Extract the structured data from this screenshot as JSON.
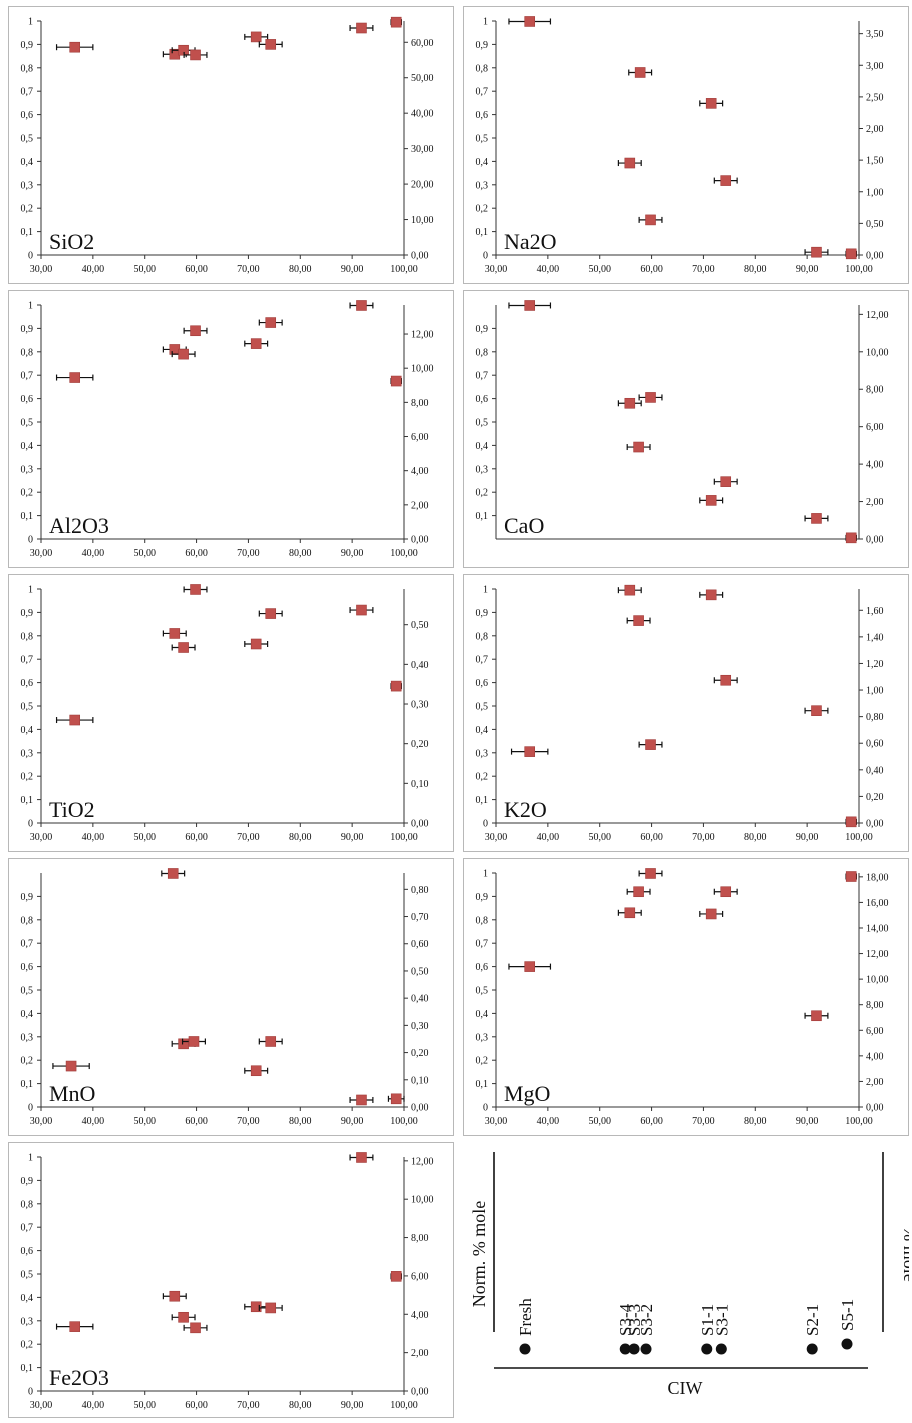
{
  "legend": {
    "left_axis_label": "Norm. % mole",
    "right_axis_label": "% mole",
    "x_axis_label": "CIW",
    "samples": [
      {
        "name": "Fresh",
        "ciw": 36.5
      },
      {
        "name": "S3-4",
        "ciw": 55.8
      },
      {
        "name": "S3-3",
        "ciw": 57.5
      },
      {
        "name": "S3-2",
        "ciw": 59.8
      },
      {
        "name": "S1-1",
        "ciw": 71.5
      },
      {
        "name": "S3-1",
        "ciw": 74.3
      },
      {
        "name": "S2-1",
        "ciw": 91.8
      },
      {
        "name": "S5-1",
        "ciw": 98.5
      }
    ]
  },
  "chart_data": [
    {
      "type": "scatter",
      "label": "SiO2",
      "xlim": [
        30,
        100
      ],
      "x_ticks": [
        "30,00",
        "40,00",
        "50,00",
        "60,00",
        "70,00",
        "80,00",
        "90,00",
        "100,00"
      ],
      "ylim_left": [
        0,
        1
      ],
      "y_ticks_left": [
        "0",
        "0,1",
        "0,2",
        "0,3",
        "0,4",
        "0,5",
        "0,6",
        "0,7",
        "0,8",
        "0,9",
        "1"
      ],
      "ylim_right": [
        0,
        66
      ],
      "y_ticks_right": [
        "0,00",
        "10,00",
        "20,00",
        "30,00",
        "40,00",
        "50,00",
        "60,00"
      ],
      "points": [
        {
          "x": 36.5,
          "y": 0.888,
          "xerr": 3.5
        },
        {
          "x": 55.8,
          "y": 0.858,
          "xerr": 2.2
        },
        {
          "x": 57.5,
          "y": 0.875,
          "xerr": 2.2
        },
        {
          "x": 59.8,
          "y": 0.855,
          "xerr": 2.2
        },
        {
          "x": 71.5,
          "y": 0.932,
          "xerr": 2.2
        },
        {
          "x": 74.3,
          "y": 0.9,
          "xerr": 2.2
        },
        {
          "x": 91.8,
          "y": 0.97,
          "xerr": 2.2
        },
        {
          "x": 98.5,
          "y": 0.995,
          "xerr": 1.0
        }
      ]
    },
    {
      "type": "scatter",
      "label": "Na2O",
      "xlim": [
        30,
        100
      ],
      "x_ticks": [
        "30,00",
        "40,00",
        "50,00",
        "60,00",
        "70,00",
        "80,00",
        "90,00",
        "100,00"
      ],
      "ylim_left": [
        0,
        1
      ],
      "y_ticks_left": [
        "0",
        "0,1",
        "0,2",
        "0,3",
        "0,4",
        "0,5",
        "0,6",
        "0,7",
        "0,8",
        "0,9",
        "1"
      ],
      "ylim_right": [
        0,
        3.7
      ],
      "y_ticks_right": [
        "0,00",
        "0,50",
        "1,00",
        "1,50",
        "2,00",
        "2,50",
        "3,00",
        "3,50"
      ],
      "points": [
        {
          "x": 36.5,
          "y": 0.998,
          "xerr": 4.0
        },
        {
          "x": 57.8,
          "y": 0.78,
          "xerr": 2.2
        },
        {
          "x": 71.5,
          "y": 0.648,
          "xerr": 2.2
        },
        {
          "x": 55.8,
          "y": 0.393,
          "xerr": 2.2
        },
        {
          "x": 74.3,
          "y": 0.318,
          "xerr": 2.2
        },
        {
          "x": 59.8,
          "y": 0.15,
          "xerr": 2.2
        },
        {
          "x": 91.8,
          "y": 0.012,
          "xerr": 2.2
        },
        {
          "x": 98.5,
          "y": 0.005,
          "xerr": 1.0
        }
      ]
    },
    {
      "type": "scatter",
      "label": "Al2O3",
      "xlim": [
        30,
        100
      ],
      "x_ticks": [
        "30,00",
        "40,00",
        "50,00",
        "60,00",
        "70,00",
        "80,00",
        "90,00",
        "100,00"
      ],
      "ylim_left": [
        0,
        1
      ],
      "y_ticks_left": [
        "0",
        "0,1",
        "0,2",
        "0,3",
        "0,4",
        "0,5",
        "0,6",
        "0,7",
        "0,8",
        "0,9",
        "1"
      ],
      "ylim_right": [
        0,
        13.7
      ],
      "y_ticks_right": [
        "0,00",
        "2,00",
        "4,00",
        "6,00",
        "8,00",
        "10,00",
        "12,00"
      ],
      "points": [
        {
          "x": 36.5,
          "y": 0.69,
          "xerr": 3.5
        },
        {
          "x": 55.8,
          "y": 0.81,
          "xerr": 2.2
        },
        {
          "x": 57.5,
          "y": 0.79,
          "xerr": 2.2
        },
        {
          "x": 59.8,
          "y": 0.89,
          "xerr": 2.2
        },
        {
          "x": 71.5,
          "y": 0.835,
          "xerr": 2.2
        },
        {
          "x": 74.3,
          "y": 0.925,
          "xerr": 2.2
        },
        {
          "x": 91.8,
          "y": 0.998,
          "xerr": 2.2
        },
        {
          "x": 98.5,
          "y": 0.675,
          "xerr": 1.0
        }
      ]
    },
    {
      "type": "scatter",
      "label": "CaO",
      "xlim": [
        30,
        100
      ],
      "x_ticks": [],
      "ylim_left": [
        0,
        1
      ],
      "y_ticks_left": [
        "0,1",
        "0,2",
        "0,3",
        "0,4",
        "0,5",
        "0,6",
        "0,7",
        "0,8",
        "0,9"
      ],
      "ylim_right": [
        0,
        12.5
      ],
      "y_ticks_right": [
        "0,00",
        "2,00",
        "4,00",
        "6,00",
        "8,00",
        "10,00",
        "12,00"
      ],
      "points": [
        {
          "x": 36.5,
          "y": 0.998,
          "xerr": 4.0
        },
        {
          "x": 55.8,
          "y": 0.58,
          "xerr": 2.2
        },
        {
          "x": 57.5,
          "y": 0.393,
          "xerr": 2.2
        },
        {
          "x": 59.8,
          "y": 0.605,
          "xerr": 2.2
        },
        {
          "x": 71.5,
          "y": 0.165,
          "xerr": 2.2
        },
        {
          "x": 74.3,
          "y": 0.245,
          "xerr": 2.2
        },
        {
          "x": 91.8,
          "y": 0.088,
          "xerr": 2.2
        },
        {
          "x": 98.5,
          "y": 0.005,
          "xerr": 1.0
        }
      ]
    },
    {
      "type": "scatter",
      "label": "TiO2",
      "xlim": [
        30,
        100
      ],
      "x_ticks": [
        "30,00",
        "40,00",
        "50,00",
        "60,00",
        "70,00",
        "80,00",
        "90,00",
        "100,00"
      ],
      "ylim_left": [
        0,
        1
      ],
      "y_ticks_left": [
        "0",
        "0,1",
        "0,2",
        "0,3",
        "0,4",
        "0,5",
        "0,6",
        "0,7",
        "0,8",
        "0,9",
        "1"
      ],
      "ylim_right": [
        0,
        0.59
      ],
      "y_ticks_right": [
        "0,00",
        "0,10",
        "0,20",
        "0,30",
        "0,40",
        "0,50"
      ],
      "points": [
        {
          "x": 36.5,
          "y": 0.44,
          "xerr": 3.5
        },
        {
          "x": 55.8,
          "y": 0.81,
          "xerr": 2.2
        },
        {
          "x": 57.5,
          "y": 0.75,
          "xerr": 2.2
        },
        {
          "x": 59.8,
          "y": 0.998,
          "xerr": 2.2
        },
        {
          "x": 71.5,
          "y": 0.765,
          "xerr": 2.2
        },
        {
          "x": 74.3,
          "y": 0.895,
          "xerr": 2.2
        },
        {
          "x": 91.8,
          "y": 0.91,
          "xerr": 2.2
        },
        {
          "x": 98.5,
          "y": 0.585,
          "xerr": 1.0
        }
      ]
    },
    {
      "type": "scatter",
      "label": "K2O",
      "xlim": [
        30,
        100
      ],
      "x_ticks": [
        "30,00",
        "40,00",
        "50,00",
        "60,00",
        "70,00",
        "80,00",
        "90,00",
        "100,00"
      ],
      "ylim_left": [
        0,
        1
      ],
      "y_ticks_left": [
        "0",
        "0,1",
        "0,2",
        "0,3",
        "0,4",
        "0,5",
        "0,6",
        "0,7",
        "0,8",
        "0,9",
        "1"
      ],
      "ylim_right": [
        0,
        1.76
      ],
      "y_ticks_right": [
        "0,00",
        "0,20",
        "0,40",
        "0,60",
        "0,80",
        "1,00",
        "1,20",
        "1,40",
        "1,60"
      ],
      "points": [
        {
          "x": 36.5,
          "y": 0.305,
          "xerr": 3.5
        },
        {
          "x": 55.8,
          "y": 0.995,
          "xerr": 2.2
        },
        {
          "x": 57.5,
          "y": 0.865,
          "xerr": 2.2
        },
        {
          "x": 59.8,
          "y": 0.335,
          "xerr": 2.2
        },
        {
          "x": 71.5,
          "y": 0.975,
          "xerr": 2.2
        },
        {
          "x": 74.3,
          "y": 0.61,
          "xerr": 2.2
        },
        {
          "x": 91.8,
          "y": 0.48,
          "xerr": 2.2
        },
        {
          "x": 98.5,
          "y": 0.005,
          "xerr": 1.0
        }
      ]
    },
    {
      "type": "scatter",
      "label": "MnO",
      "xlim": [
        30,
        100
      ],
      "x_ticks": [
        "30,00",
        "40,00",
        "50,00",
        "60,00",
        "70,00",
        "80,00",
        "90,00",
        "100,00"
      ],
      "ylim_left": [
        0,
        1
      ],
      "y_ticks_left": [
        "0",
        "0,1",
        "0,2",
        "0,3",
        "0,4",
        "0,5",
        "0,6",
        "0,7",
        "0,8",
        "0,9"
      ],
      "ylim_right": [
        0,
        0.86
      ],
      "y_ticks_right": [
        "0,00",
        "0,10",
        "0,20",
        "0,30",
        "0,40",
        "0,50",
        "0,60",
        "0,70",
        "0,80"
      ],
      "points": [
        {
          "x": 35.8,
          "y": 0.175,
          "xerr": 3.5
        },
        {
          "x": 55.5,
          "y": 0.998,
          "xerr": 2.2
        },
        {
          "x": 57.5,
          "y": 0.27,
          "xerr": 2.2
        },
        {
          "x": 59.5,
          "y": 0.28,
          "xerr": 2.2
        },
        {
          "x": 71.5,
          "y": 0.155,
          "xerr": 2.2
        },
        {
          "x": 74.3,
          "y": 0.28,
          "xerr": 2.2
        },
        {
          "x": 91.8,
          "y": 0.03,
          "xerr": 2.2
        },
        {
          "x": 98.5,
          "y": 0.035,
          "xerr": 1.5
        }
      ]
    },
    {
      "type": "scatter",
      "label": "MgO",
      "xlim": [
        30,
        100
      ],
      "x_ticks": [
        "30,00",
        "40,00",
        "50,00",
        "60,00",
        "70,00",
        "80,00",
        "90,00",
        "100,00"
      ],
      "ylim_left": [
        0,
        1
      ],
      "y_ticks_left": [
        "0",
        "0,1",
        "0,2",
        "0,3",
        "0,4",
        "0,5",
        "0,6",
        "0,7",
        "0,8",
        "0,9",
        "1"
      ],
      "ylim_right": [
        0,
        18.3
      ],
      "y_ticks_right": [
        "0,00",
        "2,00",
        "4,00",
        "6,00",
        "8,00",
        "10,00",
        "12,00",
        "14,00",
        "16,00",
        "18,00"
      ],
      "points": [
        {
          "x": 36.5,
          "y": 0.6,
          "xerr": 4.0
        },
        {
          "x": 55.8,
          "y": 0.83,
          "xerr": 2.2
        },
        {
          "x": 57.5,
          "y": 0.92,
          "xerr": 2.2
        },
        {
          "x": 59.8,
          "y": 0.998,
          "xerr": 2.2
        },
        {
          "x": 71.5,
          "y": 0.825,
          "xerr": 2.2
        },
        {
          "x": 74.3,
          "y": 0.92,
          "xerr": 2.2
        },
        {
          "x": 91.8,
          "y": 0.39,
          "xerr": 2.2
        },
        {
          "x": 98.5,
          "y": 0.985,
          "xerr": 1.0
        }
      ]
    },
    {
      "type": "scatter",
      "label": "Fe2O3",
      "xlim": [
        30,
        100
      ],
      "x_ticks": [
        "30,00",
        "40,00",
        "50,00",
        "60,00",
        "70,00",
        "80,00",
        "90,00",
        "100,00"
      ],
      "ylim_left": [
        0,
        1
      ],
      "y_ticks_left": [
        "0",
        "0,1",
        "0,2",
        "0,3",
        "0,4",
        "0,5",
        "0,6",
        "0,7",
        "0,8",
        "0,9",
        "1"
      ],
      "ylim_right": [
        0,
        12.2
      ],
      "y_ticks_right": [
        "0,00",
        "2,00",
        "4,00",
        "6,00",
        "8,00",
        "10,00",
        "12,00"
      ],
      "points": [
        {
          "x": 36.5,
          "y": 0.275,
          "xerr": 3.5
        },
        {
          "x": 55.8,
          "y": 0.405,
          "xerr": 2.2
        },
        {
          "x": 57.5,
          "y": 0.315,
          "xerr": 2.2
        },
        {
          "x": 59.8,
          "y": 0.27,
          "xerr": 2.2
        },
        {
          "x": 71.5,
          "y": 0.36,
          "xerr": 2.2
        },
        {
          "x": 74.3,
          "y": 0.355,
          "xerr": 2.2
        },
        {
          "x": 91.8,
          "y": 0.998,
          "xerr": 2.2
        },
        {
          "x": 98.5,
          "y": 0.49,
          "xerr": 1.0
        }
      ]
    }
  ]
}
